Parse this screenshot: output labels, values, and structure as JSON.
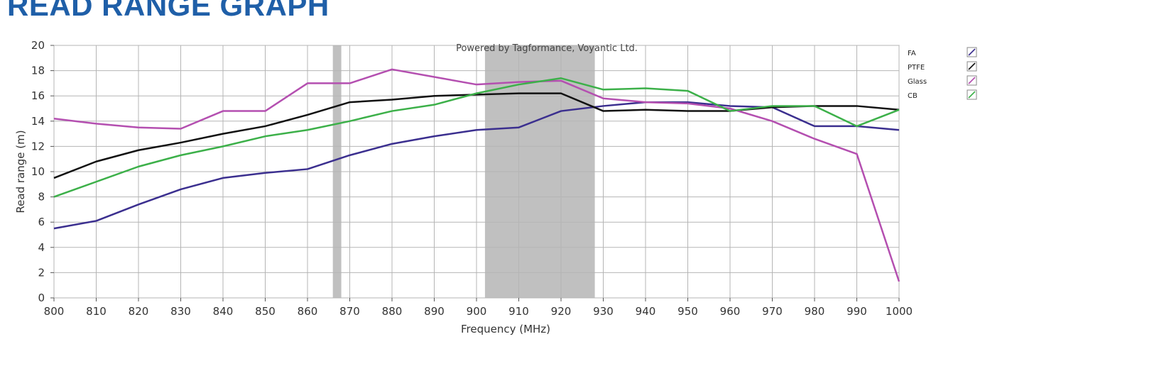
{
  "page_heading": "READ RANGE GRAPH",
  "chart_data": {
    "type": "line",
    "title": "",
    "credit": "Powered by Tagformance, Voyantic Ltd.",
    "xlabel": "Frequency (MHz)",
    "ylabel": "Read range (m)",
    "xlim": [
      800,
      1000
    ],
    "ylim": [
      0,
      20
    ],
    "x_ticks": [
      800,
      810,
      820,
      830,
      840,
      850,
      860,
      870,
      880,
      890,
      900,
      910,
      920,
      930,
      940,
      950,
      960,
      970,
      980,
      990,
      1000
    ],
    "y_ticks": [
      0,
      2,
      4,
      6,
      8,
      10,
      12,
      14,
      16,
      18,
      20
    ],
    "grid": true,
    "legend_position": "right",
    "shaded_bands": [
      {
        "x": [
          866,
          868
        ],
        "color": "#c0c0c0"
      },
      {
        "x": [
          902,
          928
        ],
        "color": "#c0c0c0"
      }
    ],
    "series": [
      {
        "name": "FA",
        "color": "#3b2f8f",
        "x": [
          800,
          810,
          820,
          830,
          840,
          850,
          860,
          870,
          880,
          890,
          900,
          910,
          920,
          930,
          940,
          950,
          960,
          970,
          980,
          990,
          1000
        ],
        "values": [
          5.5,
          6.1,
          7.4,
          8.6,
          9.5,
          9.9,
          10.2,
          11.3,
          12.2,
          12.8,
          13.3,
          13.5,
          14.8,
          15.2,
          15.5,
          15.5,
          15.2,
          15.1,
          13.6,
          13.6,
          13.3
        ]
      },
      {
        "name": "PTFE",
        "color": "#111111",
        "x": [
          800,
          810,
          820,
          830,
          840,
          850,
          860,
          870,
          880,
          890,
          900,
          910,
          920,
          930,
          940,
          950,
          960,
          970,
          980,
          990,
          1000
        ],
        "values": [
          9.5,
          10.8,
          11.7,
          12.3,
          13.0,
          13.6,
          14.5,
          15.5,
          15.7,
          16.0,
          16.1,
          16.2,
          16.2,
          14.8,
          14.9,
          14.8,
          14.8,
          15.1,
          15.2,
          15.2,
          14.9
        ]
      },
      {
        "name": "Glass",
        "color": "#b44fb0",
        "x": [
          800,
          810,
          820,
          830,
          840,
          850,
          860,
          870,
          880,
          890,
          900,
          910,
          920,
          930,
          940,
          950,
          960,
          970,
          980,
          990,
          1000
        ],
        "values": [
          14.2,
          13.8,
          13.5,
          13.4,
          14.8,
          14.8,
          17.0,
          17.0,
          18.1,
          17.5,
          16.9,
          17.1,
          17.2,
          15.8,
          15.5,
          15.4,
          15.0,
          14.0,
          12.6,
          11.4,
          1.3
        ]
      },
      {
        "name": "CB",
        "color": "#3cb049",
        "x": [
          800,
          810,
          820,
          830,
          840,
          850,
          860,
          870,
          880,
          890,
          900,
          910,
          920,
          930,
          940,
          950,
          960,
          970,
          980,
          990,
          1000
        ],
        "values": [
          8.0,
          9.2,
          10.4,
          11.3,
          12.0,
          12.8,
          13.3,
          14.0,
          14.8,
          15.3,
          16.2,
          16.9,
          17.4,
          16.5,
          16.6,
          16.4,
          14.8,
          15.2,
          15.2,
          13.6,
          14.9
        ]
      }
    ]
  }
}
